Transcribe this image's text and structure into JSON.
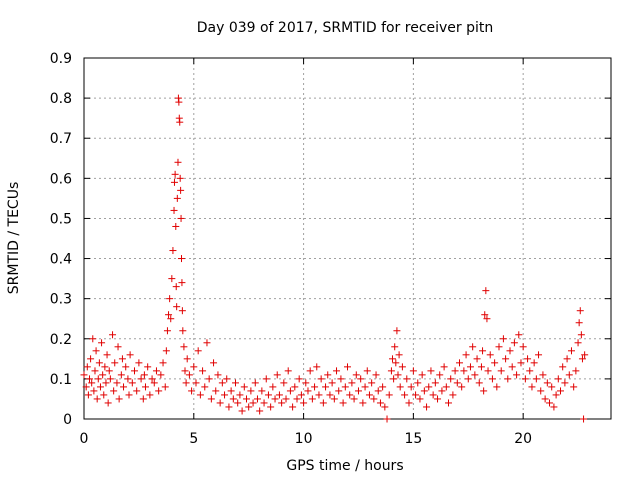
{
  "chart_data": {
    "type": "scatter",
    "title": "Day 039 of 2017, SRMTID for receiver pitn",
    "xlabel": "GPS time / hours",
    "ylabel": "SRMTID / TECUs",
    "xlim": [
      0,
      24
    ],
    "ylim": [
      0,
      0.9
    ],
    "xticks": [
      0,
      5,
      10,
      15,
      20
    ],
    "yticks": [
      0,
      0.1,
      0.2,
      0.3,
      0.4,
      0.5,
      0.6,
      0.7,
      0.8,
      0.9
    ],
    "xtick_labels": [
      "0",
      "5",
      "10",
      "15",
      "20"
    ],
    "ytick_labels": [
      "0",
      "0.1",
      "0.2",
      "0.3",
      "0.4",
      "0.5",
      "0.6",
      "0.7",
      "0.8",
      "0.9"
    ],
    "grid": true,
    "marker": "+",
    "color": "#e00000",
    "series": [
      {
        "name": "SRMTID",
        "points": [
          [
            0.0,
            0.11
          ],
          [
            0.1,
            0.08
          ],
          [
            0.15,
            0.13
          ],
          [
            0.2,
            0.06
          ],
          [
            0.25,
            0.1
          ],
          [
            0.3,
            0.15
          ],
          [
            0.35,
            0.09
          ],
          [
            0.4,
            0.2
          ],
          [
            0.45,
            0.07
          ],
          [
            0.5,
            0.12
          ],
          [
            0.55,
            0.17
          ],
          [
            0.6,
            0.05
          ],
          [
            0.65,
            0.1
          ],
          [
            0.7,
            0.14
          ],
          [
            0.75,
            0.08
          ],
          [
            0.8,
            0.19
          ],
          [
            0.85,
            0.11
          ],
          [
            0.9,
            0.06
          ],
          [
            0.95,
            0.13
          ],
          [
            1.0,
            0.09
          ],
          [
            1.05,
            0.16
          ],
          [
            1.1,
            0.04
          ],
          [
            1.15,
            0.12
          ],
          [
            1.2,
            0.1
          ],
          [
            1.3,
            0.21
          ],
          [
            1.35,
            0.07
          ],
          [
            1.4,
            0.14
          ],
          [
            1.5,
            0.09
          ],
          [
            1.55,
            0.18
          ],
          [
            1.6,
            0.05
          ],
          [
            1.7,
            0.11
          ],
          [
            1.75,
            0.15
          ],
          [
            1.8,
            0.08
          ],
          [
            1.9,
            0.13
          ],
          [
            2.0,
            0.1
          ],
          [
            2.05,
            0.06
          ],
          [
            2.1,
            0.16
          ],
          [
            2.2,
            0.09
          ],
          [
            2.3,
            0.12
          ],
          [
            2.4,
            0.07
          ],
          [
            2.5,
            0.14
          ],
          [
            2.6,
            0.1
          ],
          [
            2.7,
            0.05
          ],
          [
            2.75,
            0.11
          ],
          [
            2.8,
            0.08
          ],
          [
            2.9,
            0.13
          ],
          [
            3.0,
            0.06
          ],
          [
            3.1,
            0.1
          ],
          [
            3.2,
            0.09
          ],
          [
            3.3,
            0.12
          ],
          [
            3.4,
            0.07
          ],
          [
            3.5,
            0.11
          ],
          [
            3.6,
            0.14
          ],
          [
            3.7,
            0.08
          ],
          [
            3.75,
            0.17
          ],
          [
            3.8,
            0.22
          ],
          [
            3.85,
            0.26
          ],
          [
            3.9,
            0.3
          ],
          [
            3.95,
            0.25
          ],
          [
            4.0,
            0.35
          ],
          [
            4.05,
            0.42
          ],
          [
            4.1,
            0.52
          ],
          [
            4.12,
            0.59
          ],
          [
            4.15,
            0.61
          ],
          [
            4.18,
            0.48
          ],
          [
            4.2,
            0.33
          ],
          [
            4.22,
            0.28
          ],
          [
            4.25,
            0.55
          ],
          [
            4.28,
            0.64
          ],
          [
            4.3,
            0.8
          ],
          [
            4.32,
            0.79
          ],
          [
            4.34,
            0.75
          ],
          [
            4.36,
            0.74
          ],
          [
            4.38,
            0.6
          ],
          [
            4.4,
            0.57
          ],
          [
            4.42,
            0.5
          ],
          [
            4.44,
            0.4
          ],
          [
            4.46,
            0.34
          ],
          [
            4.48,
            0.27
          ],
          [
            4.5,
            0.22
          ],
          [
            4.55,
            0.18
          ],
          [
            4.6,
            0.12
          ],
          [
            4.65,
            0.09
          ],
          [
            4.7,
            0.15
          ],
          [
            4.8,
            0.11
          ],
          [
            4.9,
            0.07
          ],
          [
            5.0,
            0.13
          ],
          [
            5.1,
            0.09
          ],
          [
            5.2,
            0.17
          ],
          [
            5.3,
            0.06
          ],
          [
            5.4,
            0.12
          ],
          [
            5.5,
            0.08
          ],
          [
            5.6,
            0.19
          ],
          [
            5.7,
            0.1
          ],
          [
            5.8,
            0.05
          ],
          [
            5.9,
            0.14
          ],
          [
            6.0,
            0.07
          ],
          [
            6.1,
            0.11
          ],
          [
            6.2,
            0.04
          ],
          [
            6.3,
            0.09
          ],
          [
            6.4,
            0.06
          ],
          [
            6.5,
            0.1
          ],
          [
            6.6,
            0.03
          ],
          [
            6.7,
            0.07
          ],
          [
            6.8,
            0.05
          ],
          [
            6.9,
            0.09
          ],
          [
            7.0,
            0.04
          ],
          [
            7.1,
            0.06
          ],
          [
            7.2,
            0.02
          ],
          [
            7.3,
            0.08
          ],
          [
            7.4,
            0.05
          ],
          [
            7.5,
            0.03
          ],
          [
            7.6,
            0.07
          ],
          [
            7.7,
            0.04
          ],
          [
            7.8,
            0.09
          ],
          [
            7.9,
            0.05
          ],
          [
            8.0,
            0.02
          ],
          [
            8.1,
            0.07
          ],
          [
            8.2,
            0.04
          ],
          [
            8.3,
            0.1
          ],
          [
            8.4,
            0.06
          ],
          [
            8.5,
            0.03
          ],
          [
            8.6,
            0.08
          ],
          [
            8.7,
            0.05
          ],
          [
            8.8,
            0.11
          ],
          [
            8.9,
            0.06
          ],
          [
            9.0,
            0.04
          ],
          [
            9.1,
            0.09
          ],
          [
            9.2,
            0.05
          ],
          [
            9.3,
            0.12
          ],
          [
            9.4,
            0.07
          ],
          [
            9.5,
            0.03
          ],
          [
            9.6,
            0.08
          ],
          [
            9.7,
            0.05
          ],
          [
            9.8,
            0.1
          ],
          [
            9.9,
            0.06
          ],
          [
            10.0,
            0.04
          ],
          [
            10.1,
            0.09
          ],
          [
            10.2,
            0.07
          ],
          [
            10.3,
            0.12
          ],
          [
            10.4,
            0.05
          ],
          [
            10.5,
            0.08
          ],
          [
            10.6,
            0.13
          ],
          [
            10.7,
            0.06
          ],
          [
            10.8,
            0.1
          ],
          [
            10.9,
            0.04
          ],
          [
            11.0,
            0.08
          ],
          [
            11.1,
            0.11
          ],
          [
            11.2,
            0.06
          ],
          [
            11.3,
            0.09
          ],
          [
            11.4,
            0.05
          ],
          [
            11.5,
            0.12
          ],
          [
            11.6,
            0.07
          ],
          [
            11.7,
            0.1
          ],
          [
            11.8,
            0.04
          ],
          [
            11.9,
            0.08
          ],
          [
            12.0,
            0.13
          ],
          [
            12.1,
            0.06
          ],
          [
            12.2,
            0.09
          ],
          [
            12.3,
            0.05
          ],
          [
            12.4,
            0.11
          ],
          [
            12.5,
            0.07
          ],
          [
            12.6,
            0.1
          ],
          [
            12.7,
            0.04
          ],
          [
            12.8,
            0.08
          ],
          [
            12.9,
            0.12
          ],
          [
            13.0,
            0.06
          ],
          [
            13.1,
            0.09
          ],
          [
            13.2,
            0.05
          ],
          [
            13.3,
            0.11
          ],
          [
            13.4,
            0.07
          ],
          [
            13.5,
            0.04
          ],
          [
            13.6,
            0.08
          ],
          [
            13.7,
            0.03
          ],
          [
            13.8,
            0.0
          ],
          [
            13.9,
            0.06
          ],
          [
            14.0,
            0.12
          ],
          [
            14.05,
            0.15
          ],
          [
            14.1,
            0.1
          ],
          [
            14.15,
            0.18
          ],
          [
            14.2,
            0.14
          ],
          [
            14.25,
            0.22
          ],
          [
            14.3,
            0.11
          ],
          [
            14.35,
            0.16
          ],
          [
            14.4,
            0.08
          ],
          [
            14.5,
            0.13
          ],
          [
            14.6,
            0.06
          ],
          [
            14.7,
            0.1
          ],
          [
            14.8,
            0.04
          ],
          [
            14.9,
            0.08
          ],
          [
            15.0,
            0.12
          ],
          [
            15.1,
            0.06
          ],
          [
            15.2,
            0.09
          ],
          [
            15.3,
            0.05
          ],
          [
            15.4,
            0.11
          ],
          [
            15.5,
            0.07
          ],
          [
            15.6,
            0.03
          ],
          [
            15.7,
            0.08
          ],
          [
            15.8,
            0.12
          ],
          [
            15.9,
            0.06
          ],
          [
            16.0,
            0.09
          ],
          [
            16.1,
            0.05
          ],
          [
            16.2,
            0.11
          ],
          [
            16.3,
            0.07
          ],
          [
            16.4,
            0.13
          ],
          [
            16.5,
            0.08
          ],
          [
            16.6,
            0.04
          ],
          [
            16.7,
            0.1
          ],
          [
            16.8,
            0.06
          ],
          [
            16.9,
            0.12
          ],
          [
            17.0,
            0.09
          ],
          [
            17.1,
            0.14
          ],
          [
            17.2,
            0.08
          ],
          [
            17.3,
            0.12
          ],
          [
            17.4,
            0.16
          ],
          [
            17.5,
            0.1
          ],
          [
            17.6,
            0.13
          ],
          [
            17.7,
            0.18
          ],
          [
            17.8,
            0.11
          ],
          [
            17.9,
            0.15
          ],
          [
            18.0,
            0.09
          ],
          [
            18.1,
            0.13
          ],
          [
            18.15,
            0.17
          ],
          [
            18.2,
            0.07
          ],
          [
            18.25,
            0.26
          ],
          [
            18.3,
            0.32
          ],
          [
            18.35,
            0.25
          ],
          [
            18.4,
            0.12
          ],
          [
            18.5,
            0.16
          ],
          [
            18.6,
            0.1
          ],
          [
            18.7,
            0.14
          ],
          [
            18.8,
            0.08
          ],
          [
            18.9,
            0.18
          ],
          [
            19.0,
            0.12
          ],
          [
            19.1,
            0.2
          ],
          [
            19.2,
            0.15
          ],
          [
            19.3,
            0.1
          ],
          [
            19.4,
            0.17
          ],
          [
            19.5,
            0.13
          ],
          [
            19.6,
            0.19
          ],
          [
            19.7,
            0.11
          ],
          [
            19.8,
            0.21
          ],
          [
            19.9,
            0.14
          ],
          [
            20.0,
            0.18
          ],
          [
            20.1,
            0.1
          ],
          [
            20.2,
            0.15
          ],
          [
            20.3,
            0.12
          ],
          [
            20.4,
            0.08
          ],
          [
            20.5,
            0.14
          ],
          [
            20.6,
            0.1
          ],
          [
            20.7,
            0.16
          ],
          [
            20.8,
            0.07
          ],
          [
            20.9,
            0.11
          ],
          [
            21.0,
            0.05
          ],
          [
            21.1,
            0.09
          ],
          [
            21.2,
            0.04
          ],
          [
            21.3,
            0.08
          ],
          [
            21.4,
            0.03
          ],
          [
            21.5,
            0.06
          ],
          [
            21.6,
            0.1
          ],
          [
            21.7,
            0.07
          ],
          [
            21.8,
            0.13
          ],
          [
            21.9,
            0.09
          ],
          [
            22.0,
            0.15
          ],
          [
            22.1,
            0.11
          ],
          [
            22.2,
            0.17
          ],
          [
            22.3,
            0.08
          ],
          [
            22.4,
            0.12
          ],
          [
            22.5,
            0.19
          ],
          [
            22.55,
            0.24
          ],
          [
            22.6,
            0.27
          ],
          [
            22.65,
            0.21
          ],
          [
            22.7,
            0.15
          ],
          [
            22.75,
            0.0
          ],
          [
            22.8,
            0.16
          ]
        ]
      }
    ]
  }
}
